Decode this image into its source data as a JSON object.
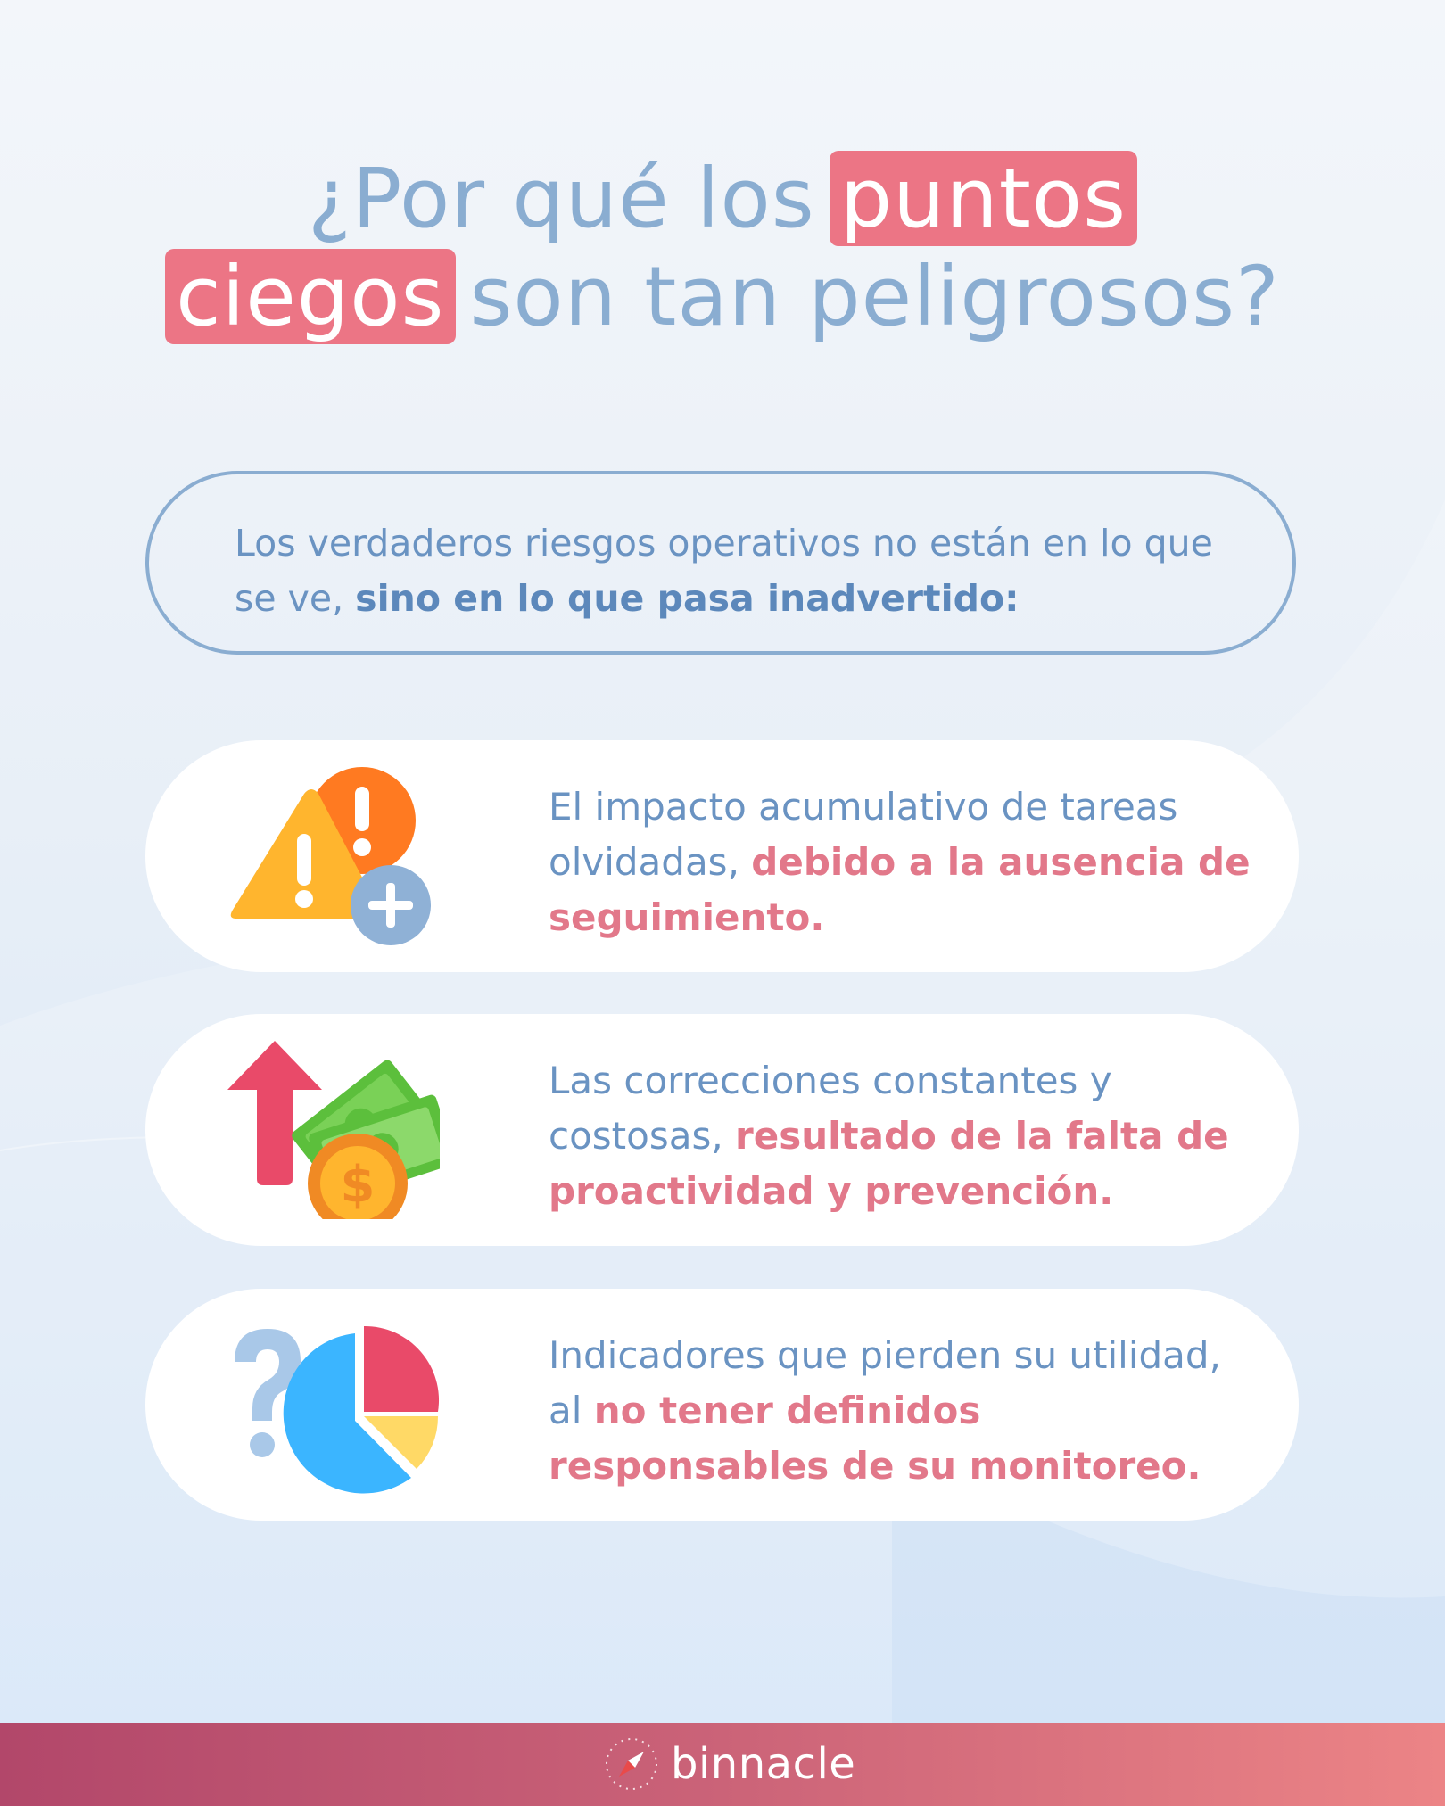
{
  "title": {
    "line1_pre": "¿Por qué los",
    "line1_highlight": "puntos",
    "line2_highlight": "ciegos",
    "line2_post": "son tan peligrosos?"
  },
  "intro": {
    "text": "Los verdaderos riesgos operativos no están en lo que se ve, ",
    "bold": "sino en lo que pasa inadvertido:"
  },
  "cards": [
    {
      "icon": "warning-icon",
      "text": "El impacto acumulativo de tareas olvidadas, ",
      "emphasis": "debido a la ausencia de seguimiento."
    },
    {
      "icon": "cost-increase-icon",
      "text": "Las correcciones constantes y costosas, ",
      "emphasis": "resultado de la falta de proactividad y prevención."
    },
    {
      "icon": "unclear-indicators-icon",
      "text": "Indicadores que pierden su utilidad, al ",
      "emphasis": "no tener definidos responsables de su monitoreo."
    }
  ],
  "footer": {
    "brand": "binnacle"
  },
  "colors": {
    "title": "#8aadd1",
    "highlight": "#ec7585",
    "body_text": "#6a93c2",
    "emphasis": "#e2788a",
    "footer_start": "#b2476a",
    "footer_end": "#ec8486"
  }
}
